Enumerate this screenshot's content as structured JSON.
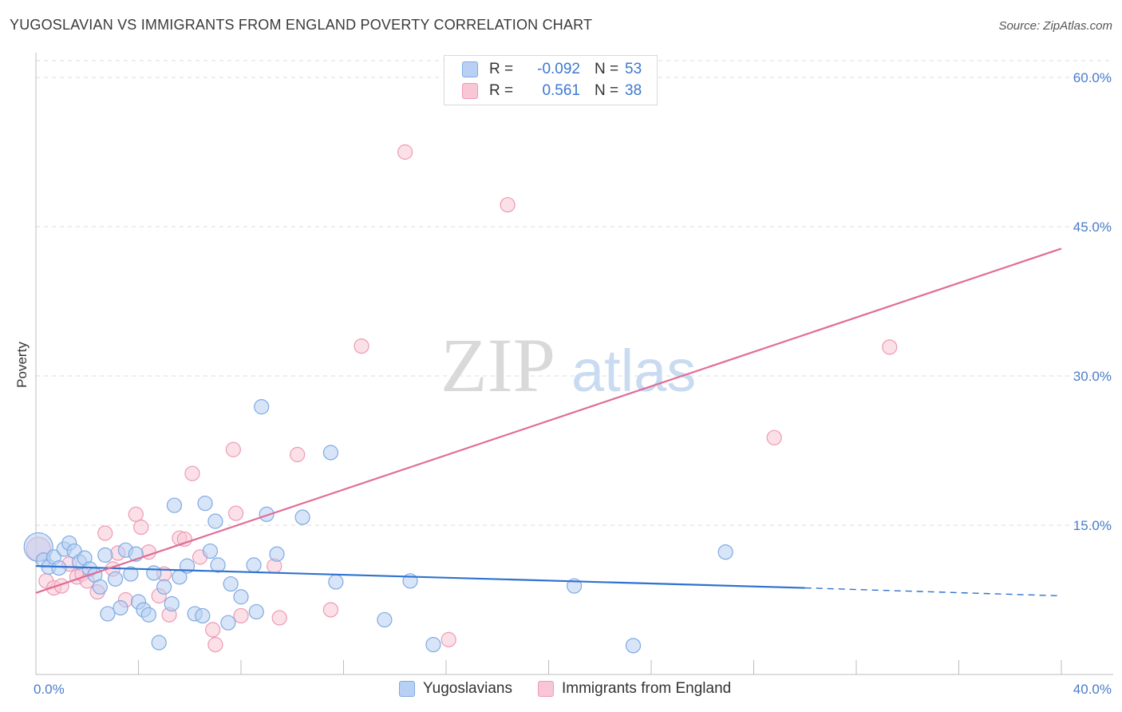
{
  "title": "YUGOSLAVIAN VS IMMIGRANTS FROM ENGLAND POVERTY CORRELATION CHART",
  "source": "Source: ZipAtlas.com",
  "watermark": {
    "zip": "ZIP",
    "atlas": "atlas"
  },
  "colors": {
    "blue_fill": "#b8d0f3",
    "blue_stroke": "#7eaae3",
    "blue_line": "#2f72d0",
    "pink_fill": "#f8c6d5",
    "pink_stroke": "#ee9ab5",
    "pink_line": "#e06c96",
    "grid": "#dedede",
    "axis": "#bcbcbc",
    "tick_text": "#4a7cc9"
  },
  "legend": {
    "rows": [
      {
        "r_label": "R =",
        "r_value": "-0.092",
        "n_label": "N =",
        "n_value": "53"
      },
      {
        "r_label": "R =",
        "r_value": "0.561",
        "n_label": "N =",
        "n_value": "38"
      }
    ]
  },
  "bottom_legend": [
    {
      "label": "Yugoslavians"
    },
    {
      "label": "Immigrants from England"
    }
  ],
  "chart_data": {
    "type": "scatter",
    "title": "YUGOSLAVIAN VS IMMIGRANTS FROM ENGLAND POVERTY CORRELATION CHART",
    "xlabel": "",
    "ylabel": "Poverty",
    "xlim": [
      0,
      40
    ],
    "ylim": [
      0,
      63
    ],
    "x_tick_labels": [
      {
        "value": 0,
        "label": "0.0%"
      },
      {
        "value": 40,
        "label": "40.0%"
      }
    ],
    "x_tick_values": [
      0,
      4,
      8,
      12,
      16,
      20,
      24,
      28,
      32,
      36,
      40
    ],
    "y_ticks": [
      {
        "value": 15,
        "label": "15.0%"
      },
      {
        "value": 30,
        "label": "30.0%"
      },
      {
        "value": 45,
        "label": "45.0%"
      },
      {
        "value": 60,
        "label": "60.0%"
      }
    ],
    "grid": true,
    "series": [
      {
        "name": "Yugoslavians",
        "r": -0.092,
        "n": 53,
        "trend": {
          "x0": 0,
          "y0": 10.9,
          "x1": 30,
          "y1": 8.7,
          "dash_x1": 40,
          "dash_y1": 7.9
        },
        "points": [
          [
            0.1,
            12.8,
            3
          ],
          [
            0.3,
            11.5,
            1
          ],
          [
            0.5,
            10.8,
            1
          ],
          [
            0.7,
            11.8,
            1
          ],
          [
            0.9,
            10.7,
            1
          ],
          [
            1.1,
            12.6,
            1
          ],
          [
            1.3,
            13.2,
            1
          ],
          [
            1.5,
            12.4,
            1
          ],
          [
            1.7,
            11.3,
            1
          ],
          [
            1.9,
            11.7,
            1
          ],
          [
            2.1,
            10.6,
            1
          ],
          [
            2.3,
            10.0,
            1
          ],
          [
            2.5,
            8.8,
            1
          ],
          [
            2.7,
            12.0,
            1
          ],
          [
            2.8,
            6.1,
            1
          ],
          [
            3.1,
            9.6,
            1
          ],
          [
            3.3,
            6.7,
            1
          ],
          [
            3.5,
            12.5,
            1
          ],
          [
            3.7,
            10.1,
            1
          ],
          [
            3.9,
            12.1,
            1
          ],
          [
            4.0,
            7.3,
            1
          ],
          [
            4.2,
            6.5,
            1
          ],
          [
            4.4,
            6.0,
            1
          ],
          [
            4.6,
            10.2,
            1
          ],
          [
            4.8,
            3.2,
            1
          ],
          [
            5.0,
            8.8,
            1
          ],
          [
            5.3,
            7.1,
            1
          ],
          [
            5.4,
            17.0,
            1
          ],
          [
            5.6,
            9.8,
            1
          ],
          [
            5.9,
            10.9,
            1
          ],
          [
            6.2,
            6.1,
            1
          ],
          [
            6.5,
            5.9,
            1
          ],
          [
            6.6,
            17.2,
            1
          ],
          [
            6.8,
            12.4,
            1
          ],
          [
            7.0,
            15.4,
            1
          ],
          [
            7.1,
            11.0,
            1
          ],
          [
            7.5,
            5.2,
            1
          ],
          [
            7.6,
            9.1,
            1
          ],
          [
            8.0,
            7.8,
            1
          ],
          [
            8.5,
            11.0,
            1
          ],
          [
            8.6,
            6.3,
            1
          ],
          [
            8.8,
            26.9,
            1
          ],
          [
            9.0,
            16.1,
            1
          ],
          [
            9.4,
            12.1,
            1
          ],
          [
            10.4,
            15.8,
            1
          ],
          [
            11.5,
            22.3,
            1
          ],
          [
            11.7,
            9.3,
            1
          ],
          [
            13.6,
            5.5,
            1
          ],
          [
            14.6,
            9.4,
            1
          ],
          [
            15.5,
            3.0,
            1
          ],
          [
            21.0,
            8.9,
            1
          ],
          [
            23.3,
            2.9,
            1
          ],
          [
            26.9,
            12.3,
            1
          ]
        ]
      },
      {
        "name": "Immigrants from England",
        "r": 0.561,
        "n": 38,
        "trend": {
          "x0": 0,
          "y0": 8.2,
          "x1": 40,
          "y1": 42.8
        },
        "points": [
          [
            0.1,
            12.6,
            2
          ],
          [
            0.4,
            9.4,
            1
          ],
          [
            0.7,
            8.7,
            1
          ],
          [
            1.0,
            8.9,
            1
          ],
          [
            1.3,
            11.1,
            1
          ],
          [
            1.6,
            9.8,
            1
          ],
          [
            1.8,
            10.1,
            1
          ],
          [
            2.0,
            9.4,
            1
          ],
          [
            2.4,
            8.3,
            1
          ],
          [
            2.7,
            14.2,
            1
          ],
          [
            3.0,
            10.6,
            1
          ],
          [
            3.2,
            12.2,
            1
          ],
          [
            3.5,
            7.5,
            1
          ],
          [
            3.9,
            16.1,
            1
          ],
          [
            4.1,
            14.8,
            1
          ],
          [
            4.4,
            12.3,
            1
          ],
          [
            4.8,
            7.9,
            1
          ],
          [
            5.0,
            10.1,
            1
          ],
          [
            5.2,
            6.0,
            1
          ],
          [
            5.6,
            13.7,
            1
          ],
          [
            5.8,
            13.6,
            1
          ],
          [
            6.1,
            20.2,
            1
          ],
          [
            6.4,
            11.8,
            1
          ],
          [
            6.9,
            4.5,
            1
          ],
          [
            7.0,
            3.0,
            1
          ],
          [
            7.7,
            22.6,
            1
          ],
          [
            7.8,
            16.2,
            1
          ],
          [
            8.0,
            5.9,
            1
          ],
          [
            9.3,
            10.9,
            1
          ],
          [
            9.5,
            5.7,
            1
          ],
          [
            10.2,
            22.1,
            1
          ],
          [
            11.5,
            6.5,
            1
          ],
          [
            12.7,
            33.0,
            1
          ],
          [
            14.4,
            52.5,
            1
          ],
          [
            16.1,
            3.5,
            1
          ],
          [
            18.4,
            47.2,
            1
          ],
          [
            28.8,
            23.8,
            1
          ],
          [
            33.3,
            32.9,
            1
          ]
        ]
      }
    ]
  }
}
